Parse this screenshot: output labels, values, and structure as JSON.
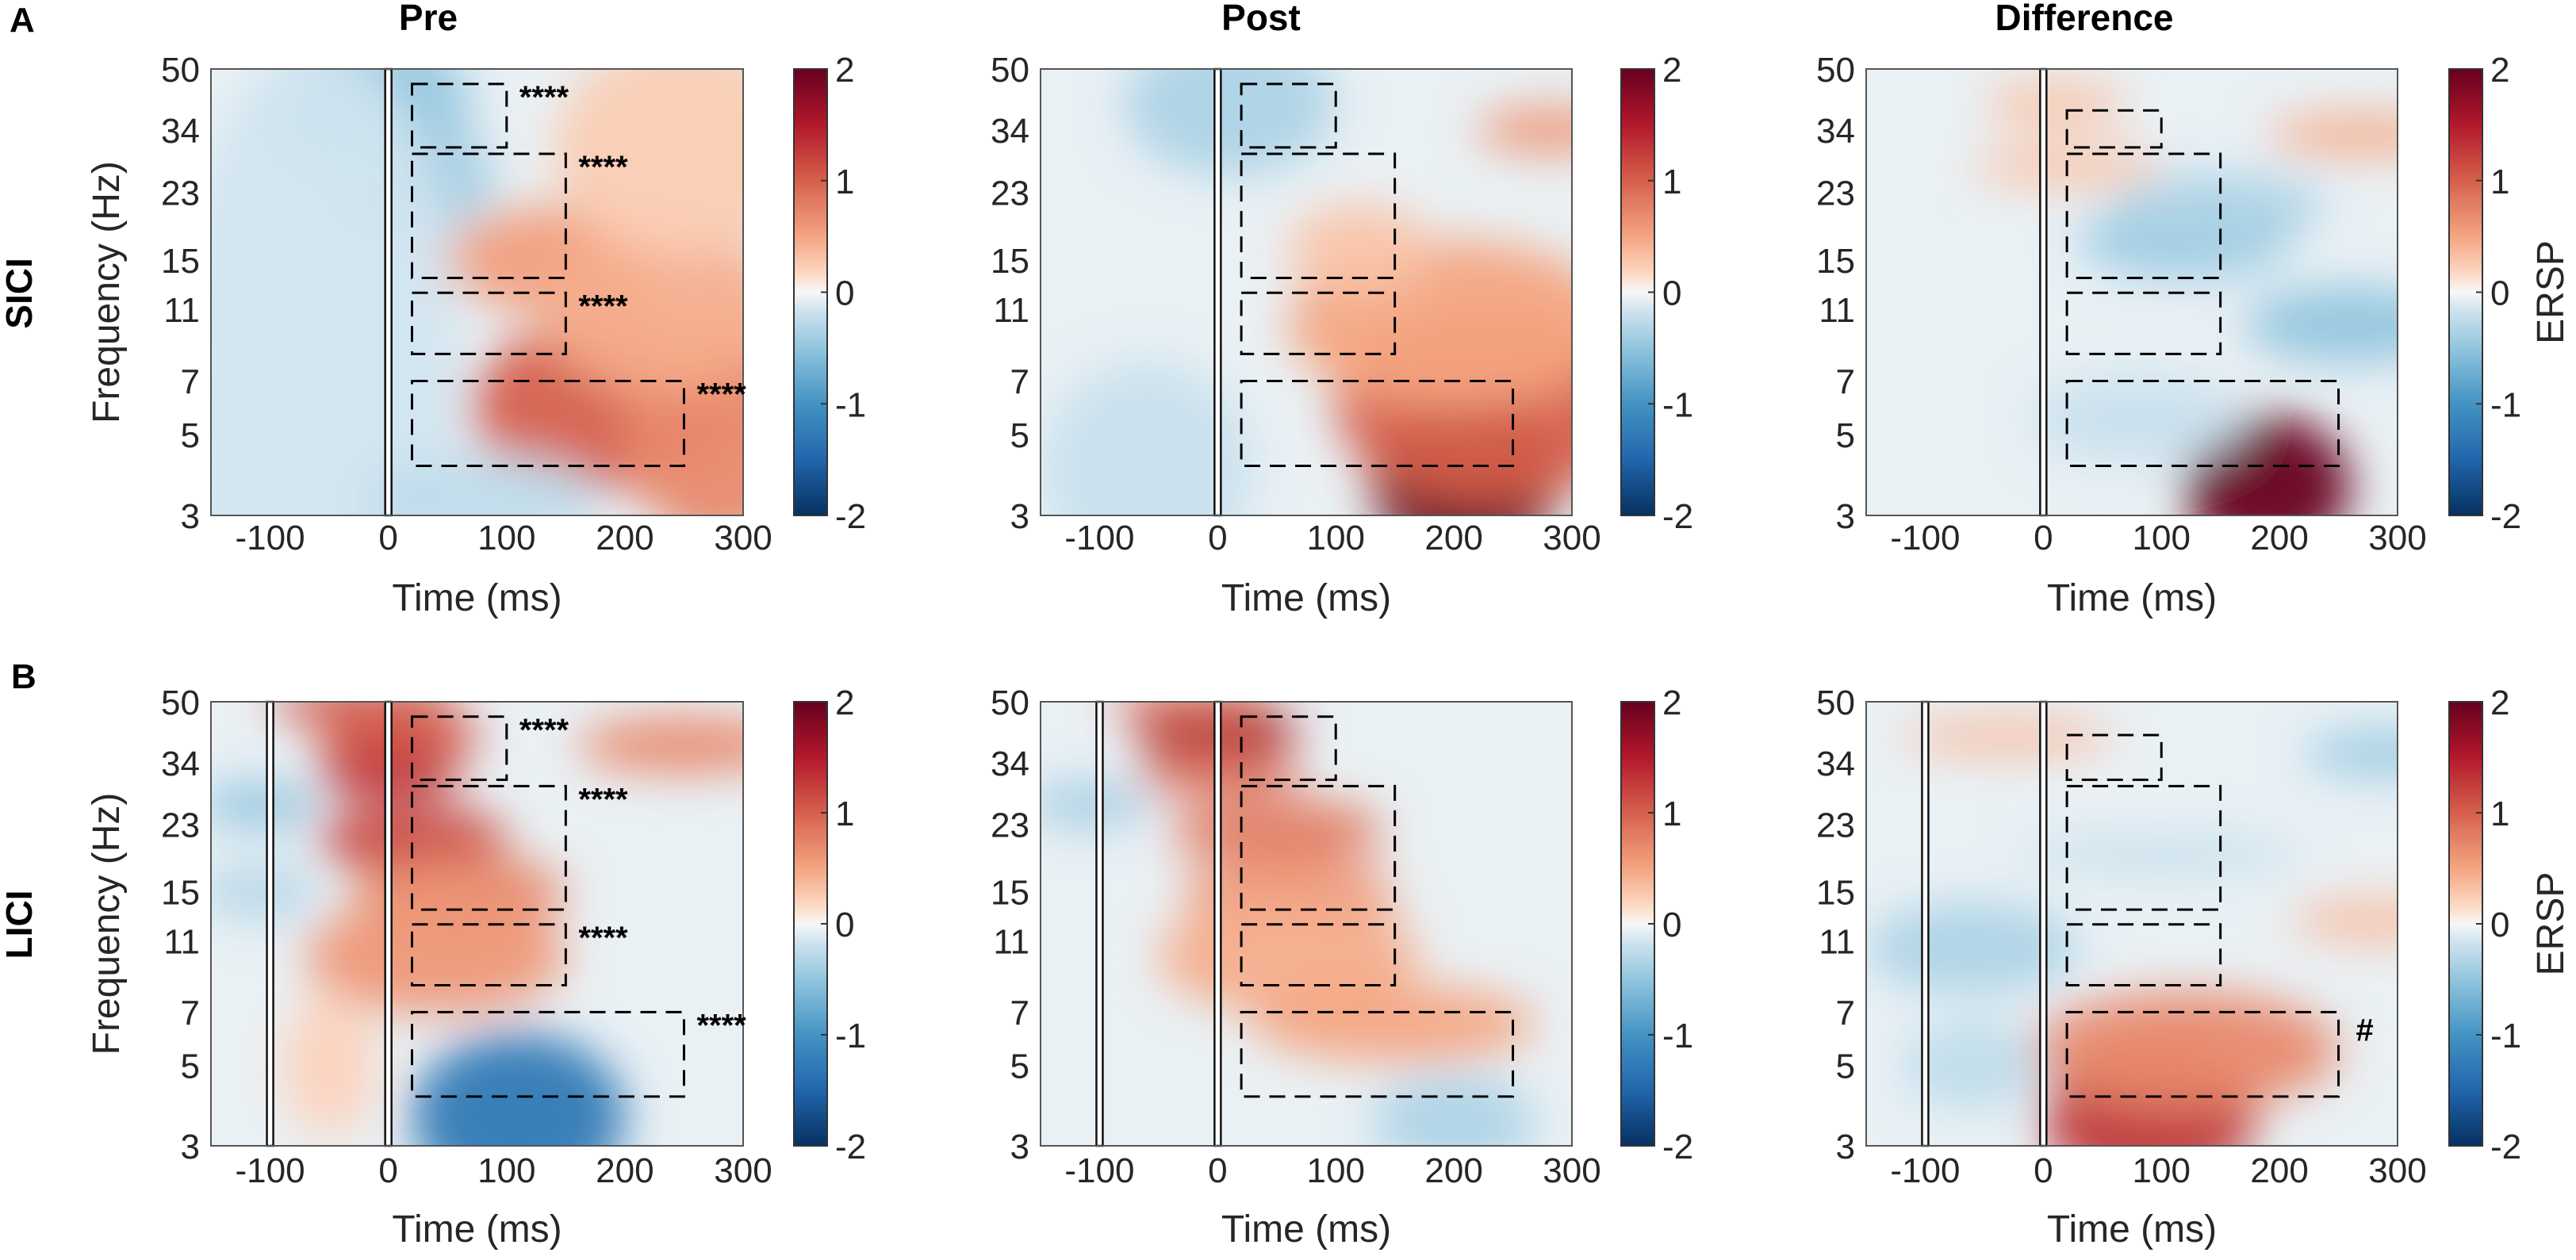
{
  "chart_data": {
    "type": "heatmap",
    "figure_labels": {
      "panel_a": "A",
      "panel_b": "B"
    },
    "column_titles": [
      "Pre",
      "Post",
      "Difference"
    ],
    "row_labels": [
      "SICI",
      "LICI"
    ],
    "xlabel": "Time (ms)",
    "ylabel": "Frequency (Hz)",
    "colorbar_label": "ERSP",
    "xlim": [
      -150,
      300
    ],
    "ylim": [
      3,
      50
    ],
    "yscale": "log",
    "xticks": [
      -100,
      0,
      100,
      200,
      300
    ],
    "yticks": [
      3,
      5,
      7,
      11,
      15,
      23,
      34,
      50
    ],
    "clim": [
      -2,
      2
    ],
    "cticks": [
      -2,
      -1,
      0,
      1,
      2
    ],
    "colormap": {
      "low": "#053061",
      "mid": "#f7f7f7",
      "high": "#67001f"
    },
    "panels": [
      {
        "row": "SICI",
        "column": "Pre",
        "event_lines_ms": [
          0
        ],
        "boxes": [
          {
            "t": [
              20,
              100
            ],
            "f": [
              30.5,
              45.5
            ],
            "label": "****"
          },
          {
            "t": [
              20,
              150
            ],
            "f": [
              13.4,
              29.3
            ],
            "label": "****"
          },
          {
            "t": [
              20,
              150
            ],
            "f": [
              8.3,
              12.2
            ],
            "label": "****"
          },
          {
            "t": [
              20,
              250
            ],
            "f": [
              4.1,
              7
            ],
            "label": "****"
          }
        ],
        "blobs": [
          {
            "t": -20,
            "f": 40,
            "v": -0.5,
            "wt": 90,
            "wf": 0.25
          },
          {
            "t": 20,
            "f": 25,
            "v": -0.4,
            "wt": 70,
            "wf": 0.2
          },
          {
            "t": -60,
            "f": 8,
            "v": -0.15,
            "wt": 120,
            "wf": 1.2
          },
          {
            "t": 140,
            "f": 15,
            "v": 0.55,
            "wt": 90,
            "wf": 0.18
          },
          {
            "t": 180,
            "f": 6,
            "v": 1.0,
            "wt": 110,
            "wf": 0.3
          },
          {
            "t": 280,
            "f": 5,
            "v": 0.7,
            "wt": 80,
            "wf": 0.4
          },
          {
            "t": 230,
            "f": 11,
            "v": 0.45,
            "wt": 100,
            "wf": 0.3
          },
          {
            "t": 250,
            "f": 30,
            "v": 0.25,
            "wt": 110,
            "wf": 0.4
          },
          {
            "t": 80,
            "f": 3.3,
            "v": -0.25,
            "wt": 100,
            "wf": 0.15
          }
        ]
      },
      {
        "row": "SICI",
        "column": "Post",
        "event_lines_ms": [
          0
        ],
        "boxes": [
          {
            "t": [
              20,
              100
            ],
            "f": [
              30.5,
              45.5
            ],
            "label": ""
          },
          {
            "t": [
              20,
              150
            ],
            "f": [
              13.4,
              29.3
            ],
            "label": ""
          },
          {
            "t": [
              20,
              150
            ],
            "f": [
              8.3,
              12.2
            ],
            "label": ""
          },
          {
            "t": [
              20,
              250
            ],
            "f": [
              4.1,
              7
            ],
            "label": ""
          }
        ],
        "blobs": [
          {
            "t": 10,
            "f": 40,
            "v": -0.35,
            "wt": 90,
            "wf": 0.25
          },
          {
            "t": 210,
            "f": 3.8,
            "v": 2.0,
            "wt": 80,
            "wf": 0.3
          },
          {
            "t": 230,
            "f": 6,
            "v": 1.0,
            "wt": 130,
            "wf": 0.35
          },
          {
            "t": 200,
            "f": 10,
            "v": 0.5,
            "wt": 140,
            "wf": 0.3
          },
          {
            "t": 280,
            "f": 34,
            "v": 0.6,
            "wt": 60,
            "wf": 0.06
          },
          {
            "t": 120,
            "f": 16,
            "v": 0.3,
            "wt": 60,
            "wf": 0.15
          },
          {
            "t": -60,
            "f": 4,
            "v": -0.2,
            "wt": 90,
            "wf": 0.4
          }
        ]
      },
      {
        "row": "SICI",
        "column": "Difference",
        "event_lines_ms": [
          0
        ],
        "boxes": [
          {
            "t": [
              20,
              100
            ],
            "f": [
              30.5,
              38.5
            ],
            "label": ""
          },
          {
            "t": [
              20,
              150
            ],
            "f": [
              13.4,
              29.3
            ],
            "label": ""
          },
          {
            "t": [
              20,
              150
            ],
            "f": [
              8.3,
              12.2
            ],
            "label": ""
          },
          {
            "t": [
              20,
              250
            ],
            "f": [
              4.1,
              7
            ],
            "label": ""
          }
        ],
        "blobs": [
          {
            "t": 190,
            "f": 3.6,
            "v": 2.2,
            "wt": 70,
            "wf": 0.25
          },
          {
            "t": 120,
            "f": 17,
            "v": -0.45,
            "wt": 90,
            "wf": 0.12
          },
          {
            "t": 150,
            "f": 21,
            "v": -0.35,
            "wt": 90,
            "wf": 0.1
          },
          {
            "t": 260,
            "f": 10,
            "v": -0.5,
            "wt": 90,
            "wf": 0.12
          },
          {
            "t": 270,
            "f": 33,
            "v": 0.45,
            "wt": 80,
            "wf": 0.05
          },
          {
            "t": 10,
            "f": 40,
            "v": 0.3,
            "wt": 60,
            "wf": 0.06
          },
          {
            "t": 20,
            "f": 27,
            "v": 0.3,
            "wt": 80,
            "wf": 0.05
          },
          {
            "t": 80,
            "f": 5.5,
            "v": -0.2,
            "wt": 90,
            "wf": 0.15
          }
        ]
      },
      {
        "row": "LICI",
        "column": "Pre",
        "event_lines_ms": [
          -100,
          0
        ],
        "boxes": [
          {
            "t": [
              20,
              100
            ],
            "f": [
              30.5,
              45.5
            ],
            "label": "****"
          },
          {
            "t": [
              20,
              150
            ],
            "f": [
              13.4,
              29.3
            ],
            "label": "****"
          },
          {
            "t": [
              20,
              150
            ],
            "f": [
              8.3,
              12.2
            ],
            "label": "****"
          },
          {
            "t": [
              20,
              250
            ],
            "f": [
              4.1,
              7
            ],
            "label": "****"
          }
        ],
        "blobs": [
          {
            "t": -20,
            "f": 49,
            "v": 1.1,
            "wt": 80,
            "wf": 0.05
          },
          {
            "t": 10,
            "f": 40,
            "v": 1.0,
            "wt": 70,
            "wf": 0.07
          },
          {
            "t": 0,
            "f": 32,
            "v": 1.3,
            "wt": 60,
            "wf": 0.08
          },
          {
            "t": 20,
            "f": 21,
            "v": 1.2,
            "wt": 80,
            "wf": 0.1
          },
          {
            "t": 60,
            "f": 15,
            "v": 0.7,
            "wt": 90,
            "wf": 0.12
          },
          {
            "t": 40,
            "f": 10,
            "v": 0.6,
            "wt": 110,
            "wf": 0.2
          },
          {
            "t": 250,
            "f": 38,
            "v": 0.7,
            "wt": 90,
            "wf": 0.08
          },
          {
            "t": -110,
            "f": 26,
            "v": -0.5,
            "wt": 50,
            "wf": 0.06
          },
          {
            "t": -110,
            "f": 15,
            "v": -0.3,
            "wt": 50,
            "wf": 0.08
          },
          {
            "t": 110,
            "f": 3.6,
            "v": -1.3,
            "wt": 90,
            "wf": 0.3
          },
          {
            "t": -50,
            "f": 5,
            "v": 0.2,
            "wt": 40,
            "wf": 0.25
          }
        ]
      },
      {
        "row": "LICI",
        "column": "Post",
        "event_lines_ms": [
          -100,
          0
        ],
        "boxes": [
          {
            "t": [
              20,
              100
            ],
            "f": [
              30.5,
              45.5
            ],
            "label": ""
          },
          {
            "t": [
              20,
              150
            ],
            "f": [
              13.4,
              29.3
            ],
            "label": ""
          },
          {
            "t": [
              20,
              150
            ],
            "f": [
              8.3,
              12.2
            ],
            "label": ""
          },
          {
            "t": [
              20,
              250
            ],
            "f": [
              4.1,
              7
            ],
            "label": ""
          }
        ],
        "blobs": [
          {
            "t": 0,
            "f": 41,
            "v": 1.6,
            "wt": 70,
            "wf": 0.06
          },
          {
            "t": 0,
            "f": 32,
            "v": 0.9,
            "wt": 70,
            "wf": 0.06
          },
          {
            "t": -20,
            "f": 49,
            "v": 0.9,
            "wt": 70,
            "wf": 0.04
          },
          {
            "t": 50,
            "f": 22,
            "v": 0.8,
            "wt": 90,
            "wf": 0.1
          },
          {
            "t": 60,
            "f": 15,
            "v": 0.6,
            "wt": 90,
            "wf": 0.1
          },
          {
            "t": 60,
            "f": 10,
            "v": 0.45,
            "wt": 110,
            "wf": 0.2
          },
          {
            "t": 150,
            "f": 6.5,
            "v": 0.5,
            "wt": 120,
            "wf": 0.12
          },
          {
            "t": 200,
            "f": 3.5,
            "v": -0.35,
            "wt": 70,
            "wf": 0.15
          },
          {
            "t": -110,
            "f": 26,
            "v": -0.4,
            "wt": 50,
            "wf": 0.06
          }
        ]
      },
      {
        "row": "LICI",
        "column": "Difference",
        "event_lines_ms": [
          -100,
          0
        ],
        "boxes": [
          {
            "t": [
              20,
              100
            ],
            "f": [
              30.5,
              40.5
            ],
            "label": ""
          },
          {
            "t": [
              20,
              150
            ],
            "f": [
              13.4,
              29.3
            ],
            "label": ""
          },
          {
            "t": [
              20,
              150
            ],
            "f": [
              8.3,
              12.2
            ],
            "label": ""
          },
          {
            "t": [
              20,
              250
            ],
            "f": [
              4.1,
              7
            ],
            "label": "#"
          }
        ],
        "blobs": [
          {
            "t": 90,
            "f": 3.6,
            "v": 1.3,
            "wt": 90,
            "wf": 0.25
          },
          {
            "t": 120,
            "f": 5.5,
            "v": 0.7,
            "wt": 130,
            "wf": 0.2
          },
          {
            "t": -60,
            "f": 10.5,
            "v": -0.35,
            "wt": 90,
            "wf": 0.15
          },
          {
            "t": -60,
            "f": 5,
            "v": -0.25,
            "wt": 60,
            "wf": 0.15
          },
          {
            "t": -30,
            "f": 40,
            "v": 0.35,
            "wt": 90,
            "wf": 0.04
          },
          {
            "t": 290,
            "f": 36,
            "v": -0.45,
            "wt": 70,
            "wf": 0.06
          },
          {
            "t": 280,
            "f": 12.5,
            "v": 0.35,
            "wt": 70,
            "wf": 0.05
          },
          {
            "t": 100,
            "f": 19,
            "v": -0.2,
            "wt": 120,
            "wf": 0.05
          }
        ]
      }
    ]
  }
}
